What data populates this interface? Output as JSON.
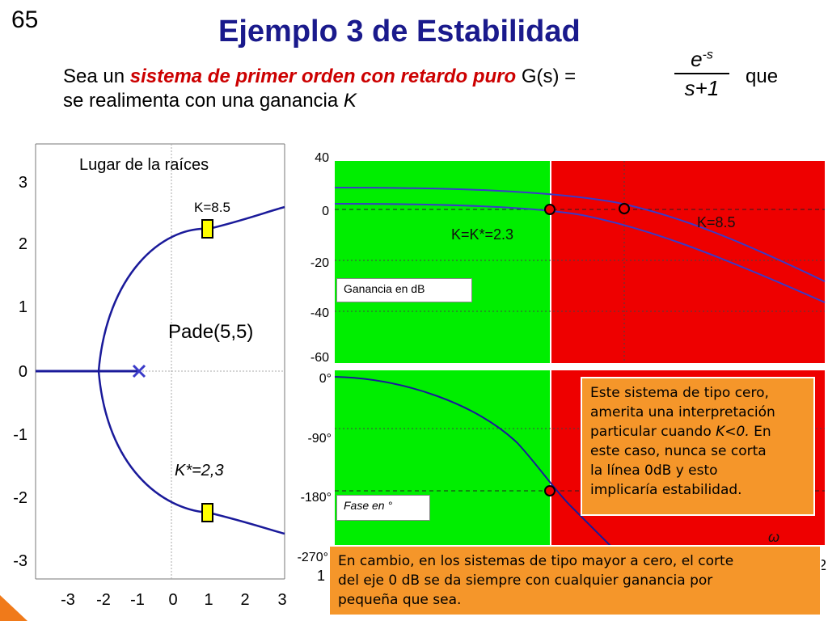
{
  "slide_number": "65",
  "title": "Ejemplo 3 de Estabilidad",
  "intro": {
    "part1": "Sea un ",
    "highlight": "sistema de primer orden con retardo puro",
    "part2": " G(s) =",
    "tf_num_base": "e",
    "tf_num_exp": "-s",
    "tf_den": "s+1",
    "part3": "que",
    "line2": "se realimenta con una ganancia ",
    "line2_var": "K"
  },
  "root_locus": {
    "title": "Lugar de la raíces",
    "y_ticks": [
      "3",
      "2",
      "1",
      "0",
      "-1",
      "-2",
      "-3"
    ],
    "x_ticks": [
      "-3",
      "-2",
      "-1",
      "0",
      "1",
      "2",
      "3"
    ],
    "label_k_upper": "K=8.5",
    "label_pade": "Pade(5,5)",
    "label_k_lower": "K*=2,3"
  },
  "bode": {
    "mag_ticks": [
      "40",
      "0",
      "-20",
      "-40",
      "-60"
    ],
    "phase_ticks": [
      "0°",
      "-90°",
      "-180°",
      "-270°"
    ],
    "label_k_critical": "K=K*=2.3",
    "label_k_high": "K=8.5",
    "gain_box": "Ganancia en dB",
    "phase_box": "Fase en °",
    "omega_symbol": "ω",
    "partial_left": "1",
    "partial_right": "2"
  },
  "note_type_zero": {
    "l1": "Este sistema de tipo cero,",
    "l2": "amerita una interpretación",
    "l3": "particular cuando ",
    "l3_cond": "K<0.",
    "l3_tail": " En",
    "l4": "este caso, nunca se corta",
    "l5": "la línea 0dB y esto",
    "l6": "implicaría estabilidad."
  },
  "note_type_nonzero": {
    "l1": "En cambio, en los sistemas de tipo mayor a cero, el corte",
    "l2": "del eje 0 dB se da siempre con cualquier ganancia por",
    "l3": "pequeña que sea."
  },
  "colors": {
    "title": "#1a1a8c",
    "highlight": "#cc0000",
    "stable_region": "#00ee00",
    "unstable_region": "#ee0000",
    "curve": "#1a1a9a",
    "note_bg": "#f5962a",
    "marker_fill": "#ffff00"
  }
}
